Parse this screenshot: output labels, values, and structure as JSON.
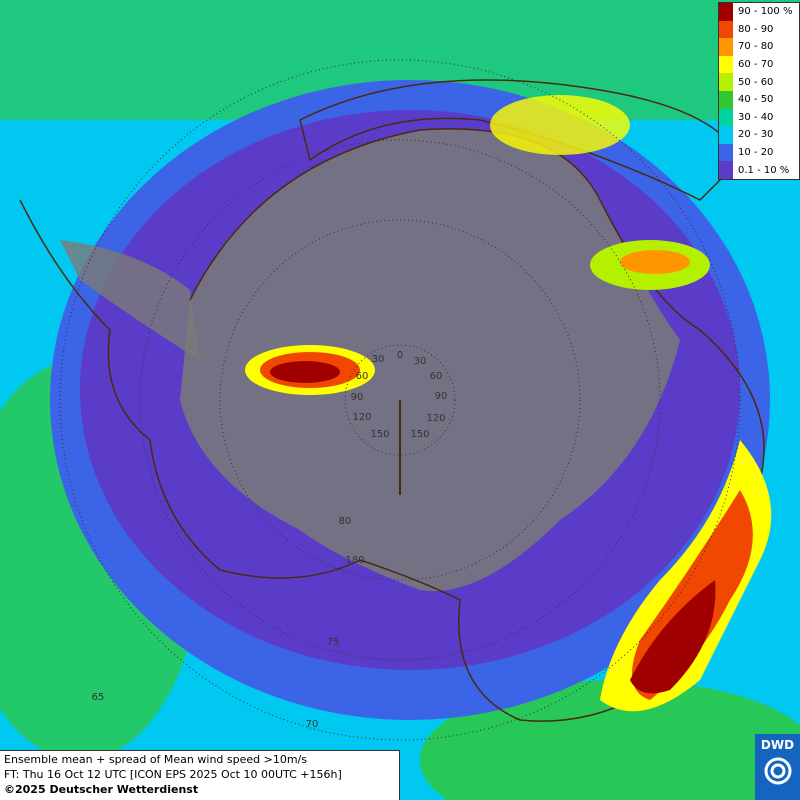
{
  "legend": {
    "items": [
      {
        "label": "90 - 100 %",
        "color": "#a00000"
      },
      {
        "label": "80 - 90",
        "color": "#f04800"
      },
      {
        "label": "70 - 80",
        "color": "#ff9600"
      },
      {
        "label": "60 - 70",
        "color": "#ffff00"
      },
      {
        "label": "50 - 60",
        "color": "#b4f000"
      },
      {
        "label": "40 - 50",
        "color": "#32c832"
      },
      {
        "label": "30 - 40",
        "color": "#00d2a0"
      },
      {
        "label": "20 - 30",
        "color": "#00c8f0"
      },
      {
        "label": "10 - 20",
        "color": "#3c64e6"
      },
      {
        "label": "0.1 - 10 %",
        "color": "#5a3cc8"
      }
    ]
  },
  "graticule_labels": [
    "0",
    "30",
    "30",
    "60",
    "60",
    "90",
    "90",
    "120",
    "120",
    "150",
    "150",
    "180",
    "80",
    "75",
    "70",
    "65"
  ],
  "footer": {
    "lines": [
      "Ensemble mean + spread of Mean wind speed >10m/s",
      "FT: Thu 16 Oct 12 UTC [ICON EPS 2025 Oct 10 00UTC +156h]",
      "©2025 Deutscher Wetterdienst"
    ]
  },
  "logo": "DWD"
}
